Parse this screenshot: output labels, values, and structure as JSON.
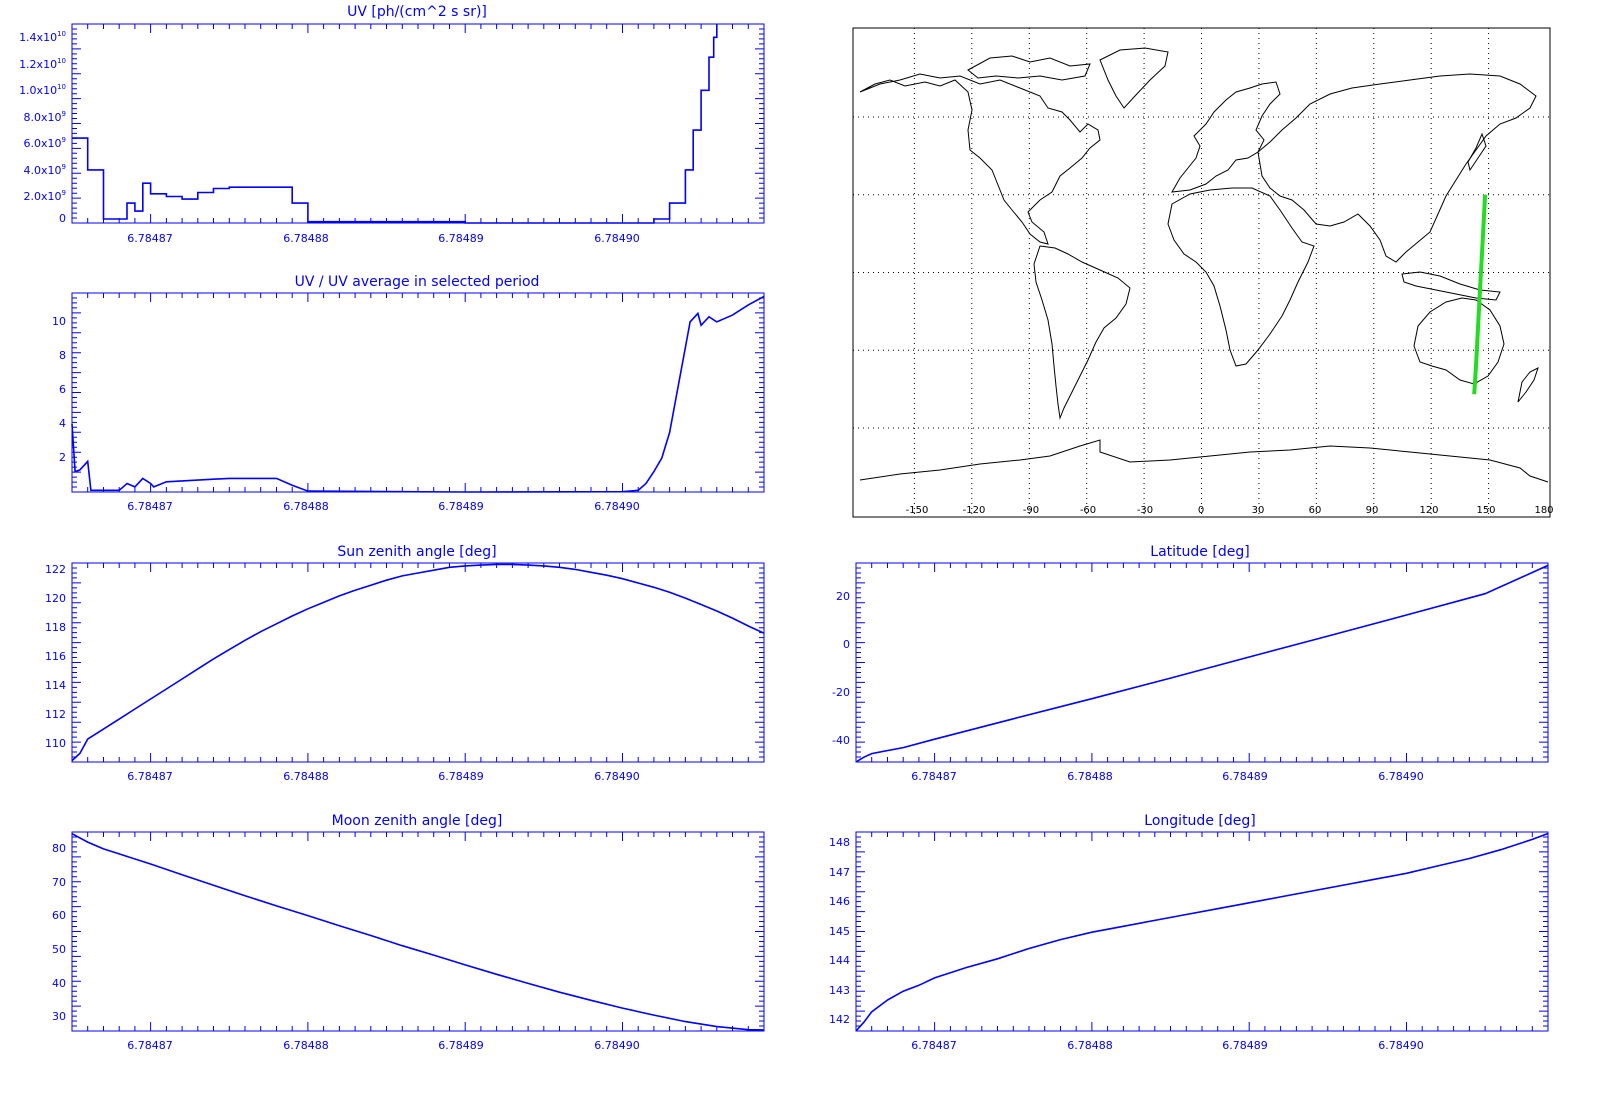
{
  "colors": {
    "axis": "#0000ff",
    "line": "#0000ff",
    "map": "#000000",
    "track": "#22dd22",
    "grid": "#000000"
  },
  "charts": [
    {
      "title": "UV [ph/(cm^2 s sr)]",
      "x_ticks": [
        "6.78487",
        "6.78488",
        "6.78489",
        "6.78490"
      ],
      "y_ticks": [
        {
          "mantissa": "1.4x10",
          "exp": "10"
        },
        {
          "mantissa": "1.2x10",
          "exp": "10"
        },
        {
          "mantissa": "1.0x10",
          "exp": "10"
        },
        {
          "mantissa": "8.0x10",
          "exp": "9"
        },
        {
          "mantissa": "6.0x10",
          "exp": "9"
        },
        {
          "mantissa": "4.0x10",
          "exp": "9"
        },
        {
          "mantissa": "2.0x10",
          "exp": "9"
        },
        {
          "mantissa": "0",
          "exp": ""
        }
      ]
    },
    {
      "title": "UV / UV average in selected period",
      "x_ticks": [
        "6.78487",
        "6.78488",
        "6.78489",
        "6.78490"
      ],
      "y_ticks": [
        "10",
        "8",
        "6",
        "4",
        "2"
      ]
    },
    {
      "title": "Sun zenith angle [deg]",
      "x_ticks": [
        "6.78487",
        "6.78488",
        "6.78489",
        "6.78490"
      ],
      "y_ticks": [
        "122",
        "120",
        "118",
        "116",
        "114",
        "112",
        "110"
      ]
    },
    {
      "title": "Moon zenith angle [deg]",
      "x_ticks": [
        "6.78487",
        "6.78488",
        "6.78489",
        "6.78490"
      ],
      "y_ticks": [
        "80",
        "70",
        "60",
        "50",
        "40",
        "30"
      ]
    },
    {
      "title": "Latitude [deg]",
      "x_ticks": [
        "6.78487",
        "6.78488",
        "6.78489",
        "6.78490"
      ],
      "y_ticks": [
        "20",
        "0",
        "-20",
        "-40"
      ]
    },
    {
      "title": "Longitude [deg]",
      "x_ticks": [
        "6.78487",
        "6.78488",
        "6.78489",
        "6.78490"
      ],
      "y_ticks": [
        "148",
        "147",
        "146",
        "145",
        "144",
        "143",
        "142"
      ]
    }
  ],
  "map": {
    "lon_ticks": [
      "-150",
      "-120",
      "-90",
      "-60",
      "-30",
      "0",
      "30",
      "60",
      "90",
      "120",
      "150",
      "180"
    ]
  },
  "chart_data": [
    {
      "type": "line",
      "title": "UV [ph/(cm^2 s sr)]",
      "xlim": [
        6.784865,
        6.784909
      ],
      "ylim": [
        0,
        15000000000.0
      ],
      "series": [
        {
          "x": [
            6.784865,
            6.784866,
            6.784867,
            6.784868,
            6.7848685,
            6.784869,
            6.7848695,
            6.78487,
            6.784871,
            6.784872,
            6.784873,
            6.784874,
            6.784875,
            6.784876,
            6.784877,
            6.784878,
            6.784879,
            6.78488,
            6.78489,
            6.784901,
            6.784902,
            6.784903,
            6.784904,
            6.7849045,
            6.784905,
            6.7849055,
            6.7849058,
            6.784906
          ],
          "y": [
            6400000000.0,
            4000000000.0,
            300000000.0,
            300000000.0,
            1500000000.0,
            900000000.0,
            3000000000.0,
            2200000000.0,
            2000000000.0,
            1800000000.0,
            2300000000.0,
            2600000000.0,
            2700000000.0,
            2700000000.0,
            2700000000.0,
            2700000000.0,
            1500000000.0,
            100000000.0,
            0,
            0,
            300000000.0,
            1500000000.0,
            4000000000.0,
            7000000000.0,
            10000000000.0,
            12500000000.0,
            14000000000.0,
            15000000000.0
          ]
        }
      ]
    },
    {
      "type": "line",
      "title": "UV / UV average in selected period",
      "xlim": [
        6.784865,
        6.784909
      ],
      "ylim": [
        0,
        11.7
      ],
      "series": [
        {
          "x": [
            6.784865,
            6.7848652,
            6.7848655,
            6.784866,
            6.7848662,
            6.784867,
            6.784868,
            6.7848685,
            6.784869,
            6.7848695,
            6.78487,
            6.7848702,
            6.784871,
            6.784872,
            6.784873,
            6.784874,
            6.784875,
            6.784876,
            6.784877,
            6.784878,
            6.784879,
            6.78488,
            6.78489,
            6.7849,
            6.784901,
            6.7849015,
            6.784902,
            6.7849025,
            6.784903,
            6.7849035,
            6.784904,
            6.7849043,
            6.7849048,
            6.784905,
            6.7849055,
            6.784906,
            6.784907,
            6.784908,
            6.784909
          ],
          "y": [
            4,
            1.2,
            1.3,
            1.8,
            0.1,
            0.1,
            0.1,
            0.5,
            0.3,
            0.8,
            0.5,
            0.3,
            0.6,
            0.65,
            0.7,
            0.75,
            0.8,
            0.8,
            0.8,
            0.8,
            0.4,
            0.05,
            0,
            0.02,
            0.1,
            0.5,
            1.2,
            2,
            3.5,
            6,
            8.5,
            10,
            10.5,
            9.8,
            10.3,
            10,
            10.4,
            11,
            11.5
          ]
        }
      ]
    },
    {
      "type": "line",
      "title": "Sun zenith angle [deg]",
      "xlim": [
        6.784865,
        6.784909
      ],
      "ylim": [
        108.7,
        122.6
      ],
      "series": [
        {
          "x": [
            6.784865,
            6.7848655,
            6.784866,
            6.784867,
            6.784868,
            6.784869,
            6.78487,
            6.784871,
            6.784872,
            6.784873,
            6.784874,
            6.784875,
            6.784876,
            6.784877,
            6.784878,
            6.784879,
            6.78488,
            6.784881,
            6.784882,
            6.784883,
            6.784884,
            6.784885,
            6.784886,
            6.784887,
            6.784888,
            6.784889,
            6.78489,
            6.784891,
            6.784892,
            6.784893,
            6.784894,
            6.784895,
            6.784896,
            6.784897,
            6.784898,
            6.784899,
            6.7849,
            6.784901,
            6.784902,
            6.784903,
            6.784904,
            6.784905,
            6.784906,
            6.784907,
            6.784908,
            6.784909
          ],
          "y": [
            108.8,
            109.3,
            110.3,
            111,
            111.7,
            112.4,
            113.1,
            113.8,
            114.5,
            115.2,
            115.9,
            116.55,
            117.2,
            117.8,
            118.35,
            118.9,
            119.4,
            119.85,
            120.3,
            120.7,
            121.05,
            121.4,
            121.7,
            121.9,
            122.1,
            122.3,
            122.4,
            122.45,
            122.5,
            122.5,
            122.45,
            122.4,
            122.3,
            122.15,
            121.95,
            121.75,
            121.5,
            121.2,
            120.9,
            120.55,
            120.15,
            119.7,
            119.25,
            118.75,
            118.2,
            117.7
          ]
        }
      ]
    },
    {
      "type": "line",
      "title": "Moon zenith angle [deg]",
      "xlim": [
        6.784865,
        6.784909
      ],
      "ylim": [
        25.5,
        84.5
      ],
      "series": [
        {
          "x": [
            6.784865,
            6.784866,
            6.784867,
            6.784868,
            6.78487,
            6.784872,
            6.784874,
            6.784876,
            6.784878,
            6.78488,
            6.784882,
            6.784884,
            6.784886,
            6.784888,
            6.78489,
            6.784892,
            6.784894,
            6.784896,
            6.784898,
            6.7849,
            6.784902,
            6.784904,
            6.784906,
            6.784908,
            6.784909
          ],
          "y": [
            84,
            81.5,
            79.5,
            78,
            75,
            71.8,
            68.7,
            65.6,
            62.6,
            59.7,
            56.7,
            53.8,
            50.8,
            48,
            45.1,
            42.3,
            39.6,
            37,
            34.6,
            32.3,
            30.2,
            28.3,
            26.8,
            25.9,
            25.8
          ]
        }
      ]
    },
    {
      "type": "line",
      "title": "Latitude [deg]",
      "xlim": [
        6.784865,
        6.784909
      ],
      "ylim": [
        -49,
        34
      ],
      "series": [
        {
          "x": [
            6.784865,
            6.7848655,
            6.784866,
            6.784868,
            6.78487,
            6.784875,
            6.78488,
            6.784885,
            6.78489,
            6.784895,
            6.7849,
            6.784905,
            6.784909
          ],
          "y": [
            -49,
            -47,
            -45.5,
            -43,
            -39.5,
            -31,
            -22.6,
            -14,
            -5.2,
            3.5,
            12.3,
            21.2,
            33
          ]
        }
      ]
    },
    {
      "type": "line",
      "title": "Longitude [deg]",
      "xlim": [
        6.784865,
        6.784909
      ],
      "ylim": [
        141.5,
        148.25
      ],
      "series": [
        {
          "x": [
            6.784865,
            6.7848655,
            6.784866,
            6.784867,
            6.784868,
            6.784869,
            6.78487,
            6.784872,
            6.784874,
            6.784876,
            6.784878,
            6.78488,
            6.784882,
            6.784884,
            6.784886,
            6.784888,
            6.78489,
            6.784892,
            6.784894,
            6.784896,
            6.784898,
            6.7849,
            6.784902,
            6.784904,
            6.784906,
            6.784908,
            6.784909
          ],
          "y": [
            141.5,
            141.8,
            142.15,
            142.55,
            142.85,
            143.05,
            143.3,
            143.65,
            143.95,
            144.3,
            144.6,
            144.85,
            145.05,
            145.25,
            145.45,
            145.65,
            145.85,
            146.05,
            146.25,
            146.45,
            146.65,
            146.85,
            147.1,
            147.35,
            147.65,
            148,
            148.2
          ]
        }
      ]
    },
    {
      "type": "scatter",
      "title": "",
      "xlim": [
        -180,
        180
      ],
      "ylim": [
        -90,
        90
      ],
      "series": [
        {
          "x": [
            142.5,
            143.4,
            144.2,
            145,
            145.8,
            146.6,
            147.4,
            148.2
          ],
          "y": [
            -47,
            -36,
            -25,
            -14,
            -3,
            8,
            19,
            30
          ]
        }
      ]
    }
  ]
}
